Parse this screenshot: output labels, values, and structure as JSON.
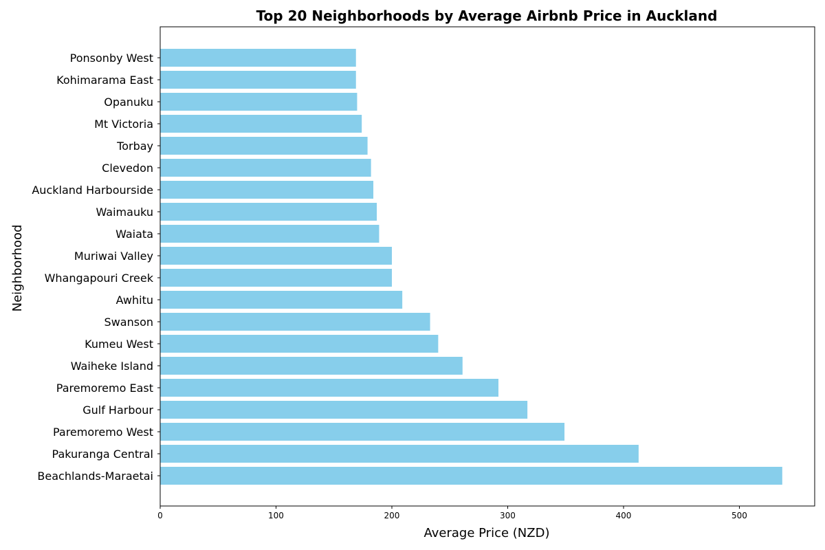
{
  "chart_data": {
    "type": "bar",
    "orientation": "horizontal",
    "title": "Top 20 Neighborhoods by Average Airbnb Price in Auckland",
    "xlabel": "Average Price (NZD)",
    "ylabel": "Neighborhood",
    "xlim": [
      0,
      565
    ],
    "xticks": [
      0,
      100,
      200,
      300,
      400,
      500
    ],
    "grid": false,
    "bar_color": "#87CEEB",
    "categories": [
      "Beachlands-Maraetai",
      "Pakuranga Central",
      "Paremoremo West",
      "Gulf Harbour",
      "Paremoremo East",
      "Waiheke Island",
      "Kumeu West",
      "Swanson",
      "Awhitu",
      "Whangapouri Creek",
      "Muriwai Valley",
      "Waiata",
      "Waimauku",
      "Auckland Harbourside",
      "Clevedon",
      "Torbay",
      "Mt Victoria",
      "Opanuku",
      "Kohimarama East",
      "Ponsonby West"
    ],
    "values": [
      537,
      413,
      349,
      317,
      292,
      261,
      240,
      233,
      209,
      200,
      200,
      189,
      187,
      184,
      182,
      179,
      174,
      170,
      169,
      169
    ]
  }
}
